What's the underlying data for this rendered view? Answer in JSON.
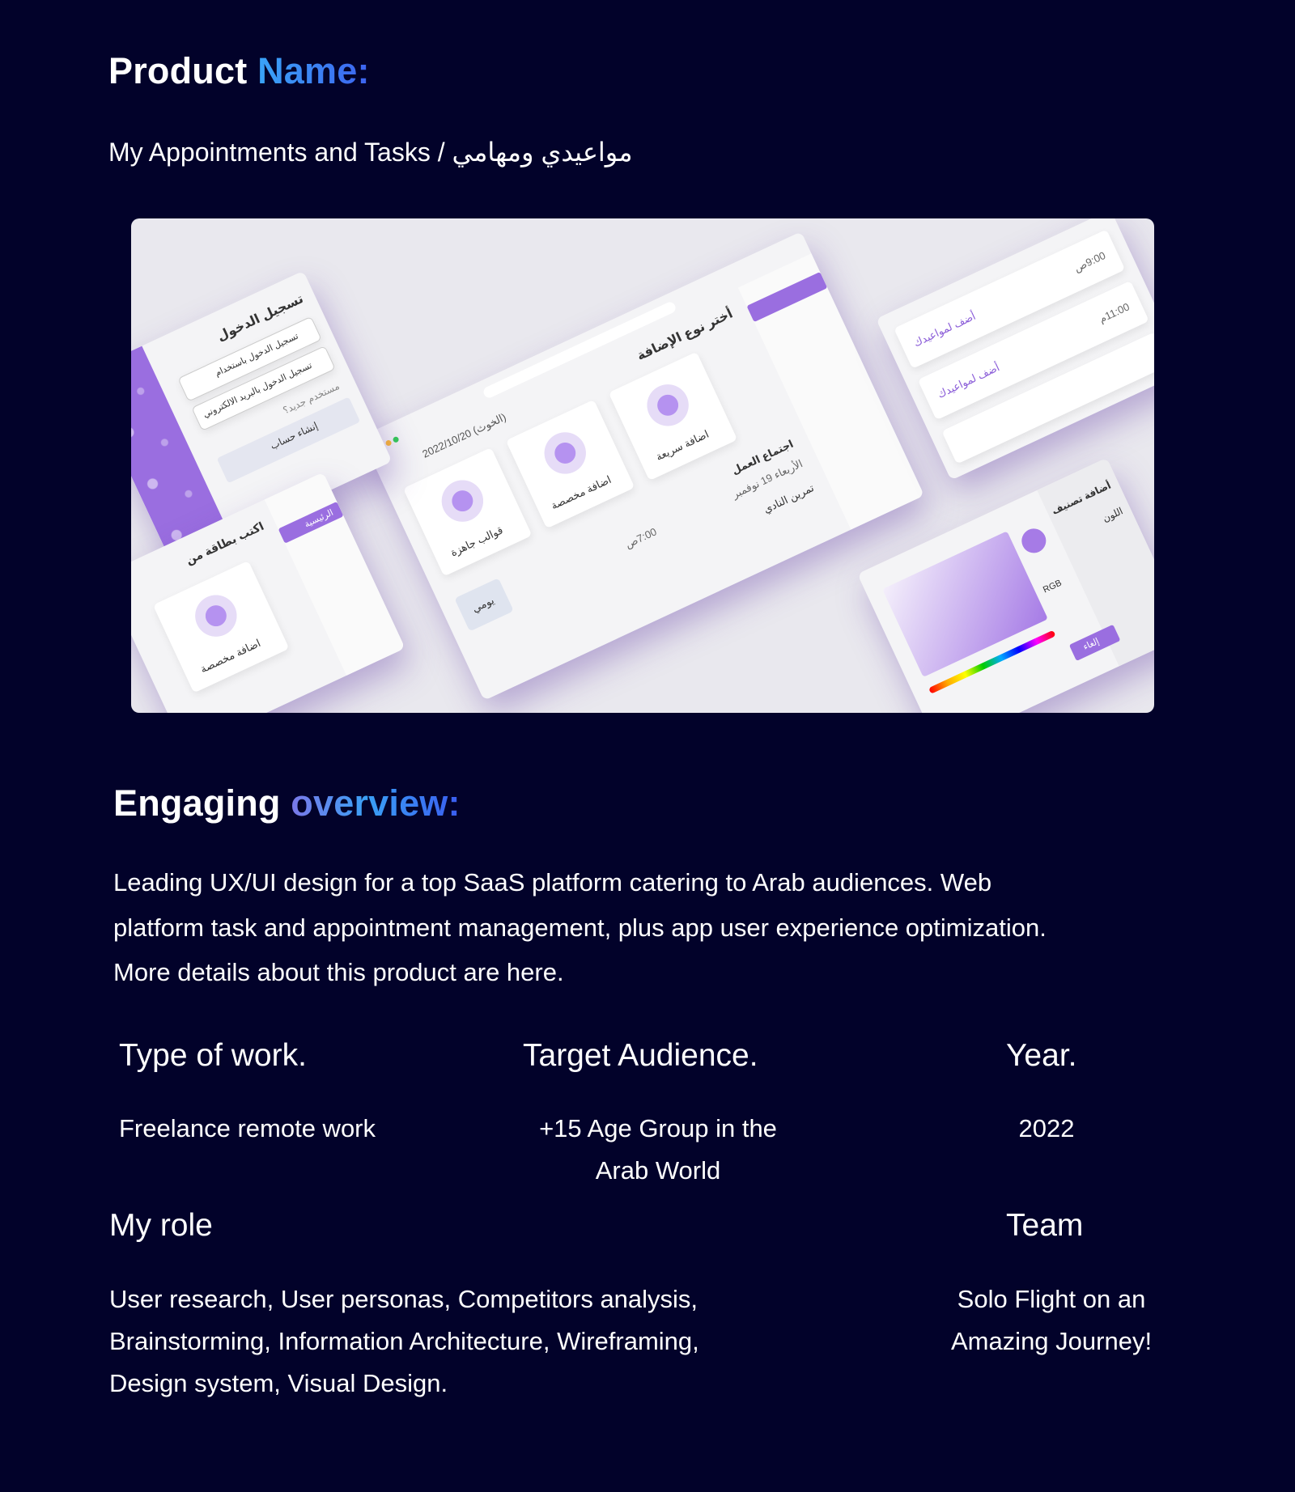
{
  "header": {
    "title_prefix": "Product",
    "title_accent": "Name:",
    "product_name": "My Appointments and Tasks / مواعيدي ومهامي"
  },
  "showcase": {
    "labels": {
      "login_title": "تسجيل الدخول",
      "google_login": "تسجيل الدخول باستخدام",
      "email_login": "تسجيل الدخول بالبريد الالكتروني",
      "new_user": "مستخدم جديد؟",
      "create_account": "إنشاء حساب",
      "choose_add_type": "أختر نوع الإضافة",
      "ready_templates": "قوالب جاهزة",
      "custom_add": "اضافة مخصصة",
      "quick_add": "اضافة سريعة",
      "date": "(الخوث) 2022/10/20",
      "work_meeting": "اجتماع العمل",
      "wednesday": "الأربعاء 19 نوفمبر",
      "time_1": "7:00ص",
      "exercise": "تمرين النادي",
      "add_to_appointments": "أضف لمواعيدك",
      "time_2": "9:00ص",
      "time_3": "11:00م",
      "add_category": "أضافة تصنيف",
      "write_card": "اكتب بطاقة من",
      "daily": "يومي",
      "color": "اللون",
      "rgb": "RGB",
      "cancel": "إلغاء",
      "home": "الرئيسية"
    },
    "colors": {
      "accent": "#9a6ee0",
      "background": "#e9e8ee"
    }
  },
  "overview": {
    "title_prefix": "Engaging",
    "title_accent": "overview:",
    "lines": [
      "Leading UX/UI design for a top SaaS platform catering to Arab audiences. Web",
      "platform task and appointment management, plus app user experience optimization.",
      "More details about this product are here."
    ]
  },
  "details": {
    "type_of_work": {
      "label": "Type of work.",
      "value": "Freelance remote work"
    },
    "target_audience": {
      "label": "Target Audience.",
      "lines": [
        "+15 Age Group in the",
        "Arab World"
      ]
    },
    "year": {
      "label": "Year.",
      "value": "2022"
    },
    "my_role": {
      "label": "My role",
      "lines": [
        "User research, User personas, Competitors analysis,",
        "Brainstorming, Information Architecture, Wireframing,",
        "Design system, Visual Design."
      ]
    },
    "team": {
      "label": "Team",
      "lines": [
        "Solo Flight on an",
        "Amazing Journey!"
      ]
    }
  },
  "colors": {
    "page_background": "#02022a",
    "accent_blue": "#3aa4f7",
    "accent_indigo": "#3d63f0"
  }
}
